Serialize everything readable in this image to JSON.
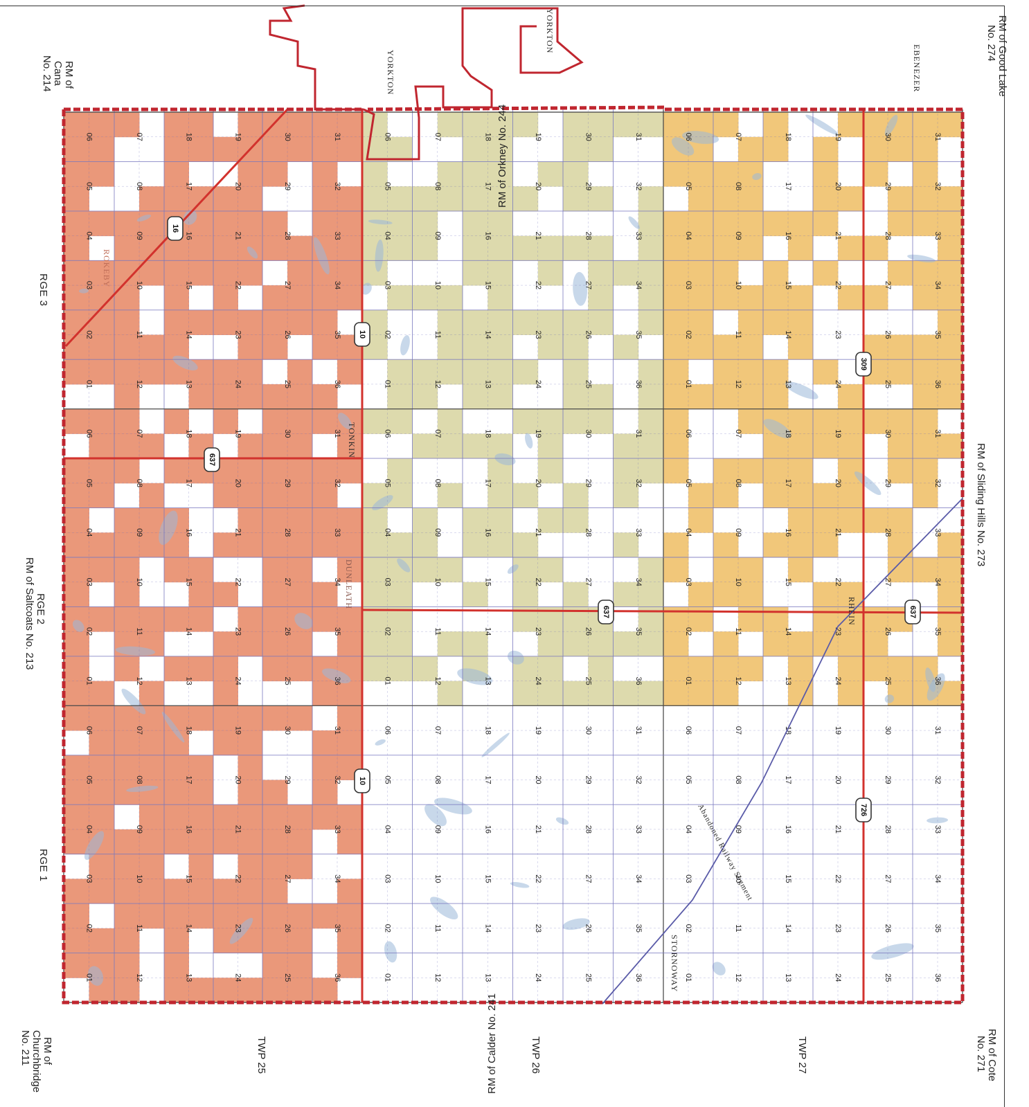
{
  "colors": {
    "boundary": "#c0262f",
    "road": "#d2322d",
    "grid": "#7b7ac0",
    "grid_major": "#4a4a4a",
    "parcel_salmon": "#e88d6c",
    "parcel_green": "#d9d6a4",
    "parcel_yellow": "#f0c16b",
    "water": "#9ab8d8",
    "railway": "#5a5ba8"
  },
  "neighbours": {
    "good_lake": [
      "RM of Good Lake",
      "No. 274"
    ],
    "cana": [
      "RM of",
      "Cana",
      "No. 214"
    ],
    "orkney": "RM of Orkney No. 244",
    "sliding_hills": "RM of Sliding Hills No. 273",
    "saltcoats": "RM of Saltcoats No. 213",
    "calder": "RM of Calder No. 241",
    "cote": [
      "RM of Cote",
      "No. 271"
    ],
    "churchbridge": [
      "RM of",
      "Churchbridge",
      "No. 211"
    ]
  },
  "ranges": [
    "RGE 3",
    "RGE 2",
    "RGE 1"
  ],
  "townships": [
    "TWP 25",
    "TWP 26",
    "TWP 27"
  ],
  "places": {
    "yorkton_1": "YORKTON",
    "yorkton_2": "YORKTON",
    "ebenezer": "EBENEZER",
    "tonkin": "TONKIN",
    "dunleath": "DUNLEATH",
    "rhein": "RHEIN",
    "stornoway": "STORNOWAY",
    "rokeby": "ROKEBY",
    "railway": "Abandoned Railway Segment"
  },
  "highways": [
    "10",
    "10",
    "16",
    "309",
    "637",
    "637",
    "637",
    "726"
  ],
  "section_rows": [
    [
      "06",
      "05",
      "04",
      "03",
      "02",
      "01"
    ],
    [
      "07",
      "08",
      "09",
      "10",
      "11",
      "12"
    ],
    [
      "18",
      "17",
      "16",
      "15",
      "14",
      "13"
    ],
    [
      "19",
      "20",
      "21",
      "22",
      "23",
      "24"
    ],
    [
      "30",
      "29",
      "28",
      "27",
      "26",
      "25"
    ],
    [
      "31",
      "32",
      "33",
      "34",
      "35",
      "36"
    ]
  ]
}
